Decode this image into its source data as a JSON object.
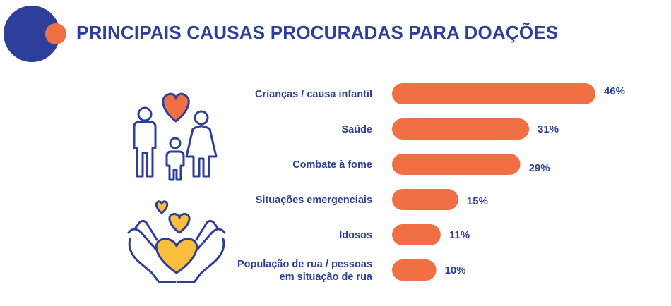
{
  "header": {
    "title": "PRINCIPAIS CAUSAS PROCURADAS PARA DOAÇÕES"
  },
  "colors": {
    "bar": "#f06f43",
    "text": "#2d3f9a",
    "logo_blue": "#2d3f9a",
    "logo_orange": "#f06f43",
    "heart_yellow": "#f9be3b"
  },
  "icons": [
    "logo-icon",
    "family-icon",
    "hands-hearts-icon"
  ],
  "chart_data": {
    "type": "bar",
    "orientation": "horizontal",
    "categories": [
      [
        "Crianças / causa infantil"
      ],
      [
        "Saúde"
      ],
      [
        "Combate à fome"
      ],
      [
        "Situações emergenciais"
      ],
      [
        "Idosos"
      ],
      [
        "População de rua / pessoas",
        "em situação de rua"
      ]
    ],
    "values": [
      46,
      31,
      29,
      15,
      11,
      10
    ],
    "value_labels": [
      "46%",
      "31%",
      "29%",
      "15%",
      "11%",
      "10%"
    ],
    "unit": "%",
    "xlim": [
      0,
      46
    ],
    "grid": false,
    "legend": "none"
  }
}
